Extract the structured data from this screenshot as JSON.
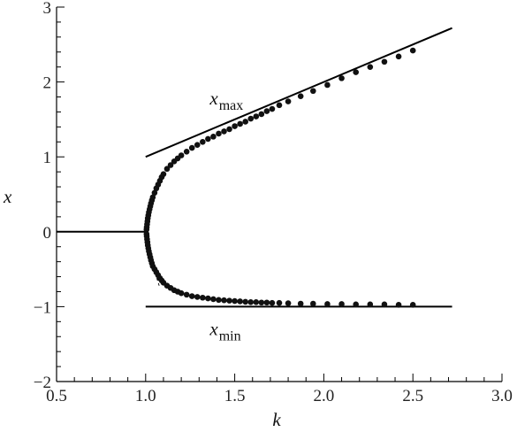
{
  "chart_data": {
    "type": "scatter",
    "title": "",
    "xlabel": "k",
    "ylabel": "x",
    "xlim": [
      0.5,
      3.0
    ],
    "ylim": [
      -2,
      3
    ],
    "x_ticks": [
      0.5,
      1.0,
      1.5,
      2.0,
      2.5,
      3.0
    ],
    "x_tick_labels": [
      "0.5",
      "1.0",
      "1.5",
      "2.0",
      "2.5",
      "3.0"
    ],
    "y_ticks": [
      -2,
      -1,
      0,
      1,
      2,
      3
    ],
    "y_tick_labels": [
      "−2",
      "−1",
      "0",
      "1",
      "2",
      "3"
    ],
    "x_minor_step": 0.1,
    "y_minor_step": 0.2,
    "grid": false,
    "annotations": [
      {
        "main": "x",
        "sub": "max",
        "x": 1.36,
        "y": 1.7
      },
      {
        "main": "x",
        "sub": "min",
        "x": 1.36,
        "y": -1.38
      }
    ],
    "series": [
      {
        "kind": "line",
        "style": "solid",
        "x": [
          0.5,
          1.0
        ],
        "y": [
          0,
          0
        ]
      },
      {
        "kind": "line",
        "style": "solid",
        "x": [
          1.0,
          2.72
        ],
        "y": [
          1.0,
          2.72
        ]
      },
      {
        "kind": "line",
        "style": "solid",
        "x": [
          1.0,
          2.72
        ],
        "y": [
          -1.0,
          -1.0
        ]
      },
      {
        "kind": "line",
        "style": "dashed",
        "x": [
          1.0,
          1.002,
          1.01,
          1.02,
          1.04,
          1.06,
          1.08
        ],
        "y": [
          0,
          0.07,
          0.18,
          0.27,
          0.44,
          0.6,
          0.75
        ]
      },
      {
        "kind": "line",
        "style": "dashed",
        "x": [
          1.0,
          1.002,
          1.01,
          1.02,
          1.04,
          1.06,
          1.08
        ],
        "y": [
          0,
          -0.07,
          -0.18,
          -0.27,
          -0.44,
          -0.6,
          -0.75
        ]
      },
      {
        "kind": "points",
        "name": "",
        "x": [
          1.005,
          1.006,
          1.008,
          1.01,
          1.012,
          1.015,
          1.018,
          1.022,
          1.026,
          1.03,
          1.035,
          1.04,
          1.05,
          1.06,
          1.07,
          1.08,
          1.09,
          1.1,
          1.12,
          1.14,
          1.16,
          1.18,
          1.2,
          1.23,
          1.26,
          1.29,
          1.32,
          1.35,
          1.38,
          1.41,
          1.44,
          1.47,
          1.5,
          1.53,
          1.56,
          1.59,
          1.62,
          1.65,
          1.68,
          1.71,
          1.75,
          1.8,
          1.87,
          1.94,
          2.02,
          2.1,
          2.18,
          2.26,
          2.34,
          2.42,
          2.5
        ],
        "y": [
          0.03,
          0.06,
          0.1,
          0.14,
          0.18,
          0.22,
          0.26,
          0.3,
          0.34,
          0.38,
          0.42,
          0.46,
          0.52,
          0.58,
          0.63,
          0.68,
          0.73,
          0.77,
          0.84,
          0.89,
          0.94,
          0.98,
          1.02,
          1.07,
          1.12,
          1.16,
          1.2,
          1.24,
          1.27,
          1.31,
          1.34,
          1.37,
          1.41,
          1.44,
          1.47,
          1.51,
          1.54,
          1.57,
          1.61,
          1.64,
          1.69,
          1.74,
          1.81,
          1.88,
          1.96,
          2.05,
          2.13,
          2.2,
          2.27,
          2.34,
          2.42
        ]
      },
      {
        "kind": "points",
        "name": "",
        "x": [
          1.005,
          1.006,
          1.008,
          1.01,
          1.012,
          1.015,
          1.018,
          1.022,
          1.026,
          1.03,
          1.035,
          1.04,
          1.05,
          1.06,
          1.07,
          1.08,
          1.09,
          1.1,
          1.12,
          1.14,
          1.16,
          1.18,
          1.2,
          1.23,
          1.26,
          1.29,
          1.32,
          1.35,
          1.38,
          1.41,
          1.44,
          1.47,
          1.5,
          1.53,
          1.56,
          1.59,
          1.62,
          1.65,
          1.68,
          1.71,
          1.75,
          1.8,
          1.87,
          1.94,
          2.02,
          2.1,
          2.18,
          2.26,
          2.34,
          2.42,
          2.5
        ],
        "y": [
          -0.03,
          -0.06,
          -0.1,
          -0.14,
          -0.18,
          -0.22,
          -0.26,
          -0.3,
          -0.34,
          -0.38,
          -0.42,
          -0.46,
          -0.5,
          -0.54,
          -0.58,
          -0.62,
          -0.65,
          -0.68,
          -0.72,
          -0.75,
          -0.78,
          -0.8,
          -0.82,
          -0.84,
          -0.86,
          -0.87,
          -0.88,
          -0.89,
          -0.9,
          -0.91,
          -0.915,
          -0.92,
          -0.925,
          -0.93,
          -0.935,
          -0.94,
          -0.94,
          -0.945,
          -0.945,
          -0.95,
          -0.95,
          -0.955,
          -0.96,
          -0.96,
          -0.965,
          -0.965,
          -0.97,
          -0.97,
          -0.97,
          -0.975,
          -0.975
        ]
      }
    ]
  }
}
